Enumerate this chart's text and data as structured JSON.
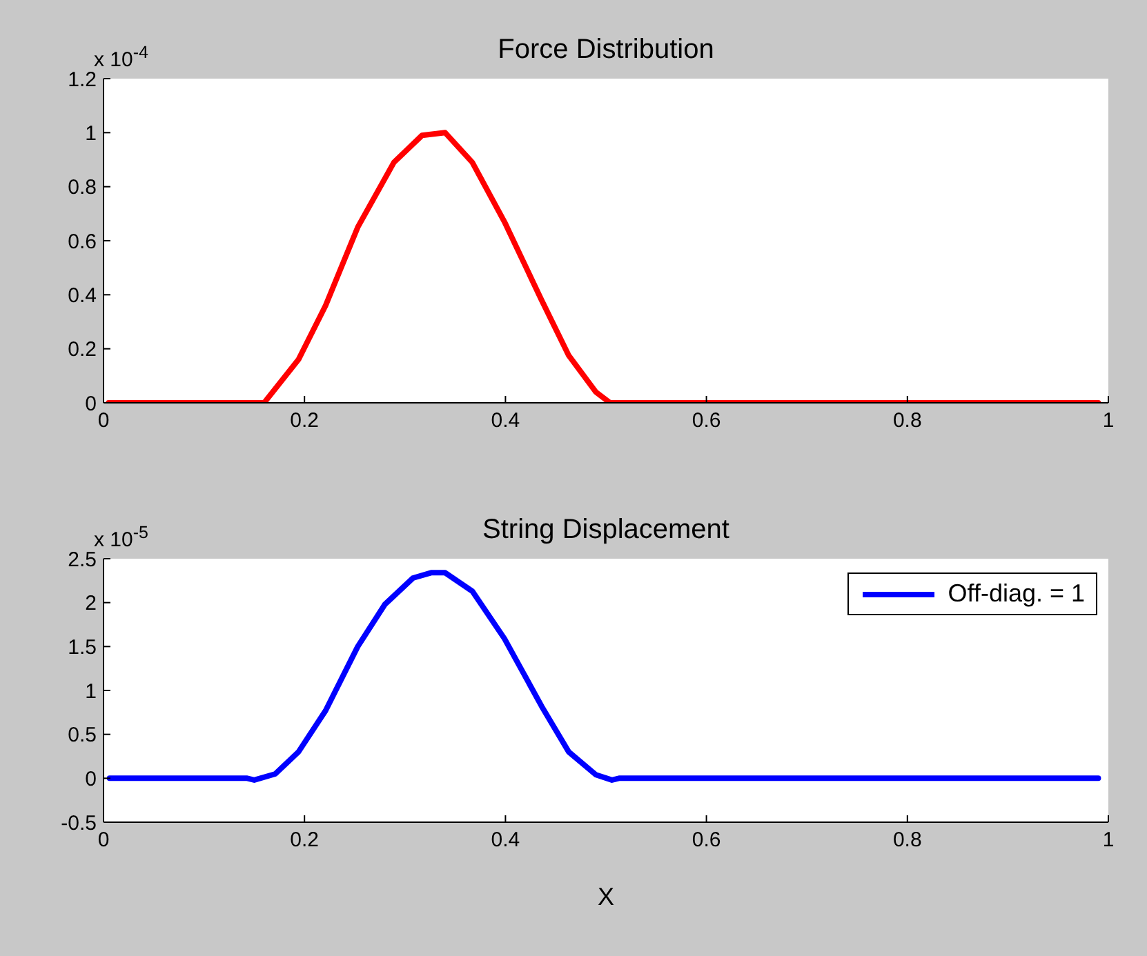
{
  "chart_data": [
    {
      "type": "line",
      "title": "Force Distribution",
      "annotations": [
        "x 10$^{-4}$"
      ],
      "xlim": [
        0,
        1
      ],
      "xticks": [
        0,
        0.2,
        0.4,
        0.6,
        0.8,
        1
      ],
      "ylim": [
        0,
        1.2
      ],
      "yticks": [
        0,
        0.2,
        0.4,
        0.6,
        0.8,
        1,
        1.2
      ],
      "marker": "none",
      "legend": false,
      "series": [
        {
          "color": "#ff0000",
          "x": [
            0.005,
            0.16,
            0.162,
            0.194,
            0.221,
            0.253,
            0.289,
            0.317,
            0.34,
            0.367,
            0.399,
            0.436,
            0.463,
            0.49,
            0.504,
            0.99
          ],
          "values": [
            0,
            0,
            0.01,
            0.16,
            0.36,
            0.65,
            0.89,
            0.99,
            1,
            0.89,
            0.67,
            0.38,
            0.175,
            0.04,
            0,
            0
          ]
        }
      ]
    },
    {
      "type": "line",
      "title": "String Displacement",
      "xlabel": "X",
      "annotations": [
        "x 10$^{-5}$"
      ],
      "xlim": [
        0,
        1
      ],
      "xticks": [
        0,
        0.2,
        0.4,
        0.6,
        0.8,
        1
      ],
      "ylim": [
        -0.5,
        2.5
      ],
      "yticks": [
        -0.5,
        0,
        0.5,
        1,
        1.5,
        2,
        2.5
      ],
      "marker": "none",
      "legend": "top right",
      "series": [
        {
          "name": "Off-diag. = 1",
          "color": "#0000ff",
          "x": [
            0.006,
            0.143,
            0.15,
            0.171,
            0.194,
            0.221,
            0.253,
            0.28,
            0.308,
            0.326,
            0.34,
            0.367,
            0.399,
            0.436,
            0.463,
            0.49,
            0.506,
            0.513,
            0.99
          ],
          "values": [
            0,
            0,
            -0.02,
            0.05,
            0.3,
            0.77,
            1.5,
            1.98,
            2.28,
            2.34,
            2.34,
            2.13,
            1.59,
            0.82,
            0.3,
            0.04,
            -0.02,
            0,
            0
          ]
        }
      ]
    }
  ]
}
